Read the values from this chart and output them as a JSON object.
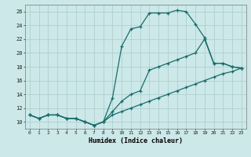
{
  "title": "",
  "xlabel": "Humidex (Indice chaleur)",
  "bg_color": "#cce8e8",
  "grid_color": "#b0d0d0",
  "line_color": "#1a6b6b",
  "xlim": [
    -0.5,
    23.5
  ],
  "ylim": [
    9.0,
    27.0
  ],
  "xticks": [
    0,
    1,
    2,
    3,
    4,
    5,
    6,
    7,
    8,
    9,
    10,
    11,
    12,
    13,
    14,
    15,
    16,
    17,
    18,
    19,
    20,
    21,
    22,
    23
  ],
  "yticks": [
    10,
    12,
    14,
    16,
    18,
    20,
    22,
    24,
    26
  ],
  "line1_x": [
    0,
    1,
    2,
    3,
    4,
    5,
    6,
    7,
    8,
    9,
    10,
    11,
    12,
    13,
    14,
    15,
    16,
    17,
    18,
    19,
    20,
    21,
    22,
    23
  ],
  "line1_y": [
    11.0,
    10.5,
    11.0,
    11.0,
    10.5,
    10.5,
    10.0,
    9.5,
    10.0,
    13.5,
    21.0,
    23.5,
    23.8,
    25.8,
    25.8,
    25.8,
    26.2,
    26.0,
    24.2,
    22.2,
    18.5,
    18.5,
    18.0,
    17.8
  ],
  "line2_x": [
    0,
    1,
    2,
    3,
    4,
    5,
    6,
    7,
    8,
    9,
    10,
    11,
    12,
    13,
    14,
    15,
    16,
    17,
    18,
    19,
    20,
    21,
    22,
    23
  ],
  "line2_y": [
    11.0,
    10.5,
    11.0,
    11.0,
    10.5,
    10.5,
    10.0,
    9.5,
    10.0,
    11.5,
    13.0,
    14.0,
    14.5,
    17.5,
    18.0,
    18.5,
    19.0,
    19.5,
    20.0,
    22.0,
    18.5,
    18.5,
    18.0,
    17.8
  ],
  "line3_x": [
    0,
    1,
    2,
    3,
    4,
    5,
    6,
    7,
    8,
    9,
    10,
    11,
    12,
    13,
    14,
    15,
    16,
    17,
    18,
    19,
    20,
    21,
    22,
    23
  ],
  "line3_y": [
    11.0,
    10.5,
    11.0,
    11.0,
    10.5,
    10.5,
    10.0,
    9.5,
    10.0,
    11.0,
    11.5,
    12.0,
    12.5,
    13.0,
    13.5,
    14.0,
    14.5,
    15.0,
    15.5,
    16.0,
    16.5,
    17.0,
    17.3,
    17.8
  ]
}
